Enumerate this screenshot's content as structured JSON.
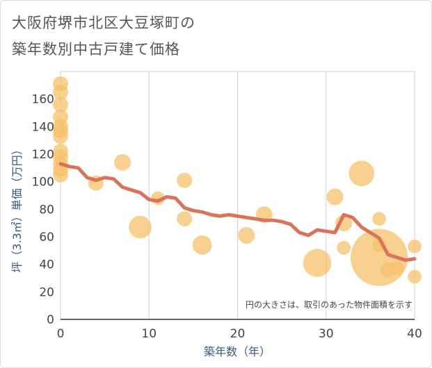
{
  "chart_data": {
    "type": "scatter",
    "title_lines": [
      "大阪府堺市北区大豆塚町の",
      "築年数別中古戸建て価格"
    ],
    "xlabel": "築年数（年）",
    "ylabel": "坪（3.3㎡）単価（万円）",
    "xlim": [
      0,
      40
    ],
    "ylim": [
      0,
      180
    ],
    "xticks": [
      0,
      10,
      20,
      30,
      40
    ],
    "yticks": [
      0,
      20,
      40,
      60,
      80,
      100,
      120,
      140,
      160
    ],
    "note": "円の大きさは、取引のあった物件面積を示す",
    "colors": {
      "bubble": "#f5c26b",
      "trend": "#d9735a",
      "grid": "#c9d3e0"
    },
    "bubbles": [
      {
        "x": 0,
        "y": 171,
        "size": 1
      },
      {
        "x": 0,
        "y": 165,
        "size": 1
      },
      {
        "x": 0,
        "y": 156,
        "size": 1
      },
      {
        "x": 0,
        "y": 147,
        "size": 1
      },
      {
        "x": 0,
        "y": 140,
        "size": 1
      },
      {
        "x": 0,
        "y": 137,
        "size": 1
      },
      {
        "x": 0,
        "y": 133,
        "size": 1
      },
      {
        "x": 0,
        "y": 122,
        "size": 1
      },
      {
        "x": 0,
        "y": 118,
        "size": 1
      },
      {
        "x": 0,
        "y": 113,
        "size": 1
      },
      {
        "x": 0,
        "y": 109,
        "size": 1
      },
      {
        "x": 0,
        "y": 105,
        "size": 1
      },
      {
        "x": 4,
        "y": 99,
        "size": 1
      },
      {
        "x": 7,
        "y": 114,
        "size": 1.2
      },
      {
        "x": 9,
        "y": 67,
        "size": 2.2
      },
      {
        "x": 11,
        "y": 88,
        "size": 0.8
      },
      {
        "x": 14,
        "y": 101,
        "size": 1
      },
      {
        "x": 14,
        "y": 73,
        "size": 1
      },
      {
        "x": 16,
        "y": 54,
        "size": 1.6
      },
      {
        "x": 21,
        "y": 61,
        "size": 1.2
      },
      {
        "x": 23,
        "y": 76,
        "size": 1.2
      },
      {
        "x": 29,
        "y": 41,
        "size": 3.4
      },
      {
        "x": 31,
        "y": 89,
        "size": 1.2
      },
      {
        "x": 32,
        "y": 70,
        "size": 1.2
      },
      {
        "x": 32,
        "y": 52,
        "size": 0.8
      },
      {
        "x": 34,
        "y": 106,
        "size": 2.8
      },
      {
        "x": 36,
        "y": 73,
        "size": 0.8
      },
      {
        "x": 36,
        "y": 54,
        "size": 0.8
      },
      {
        "x": 36,
        "y": 45,
        "size": 14
      },
      {
        "x": 37,
        "y": 36,
        "size": 1
      },
      {
        "x": 38,
        "y": 37,
        "size": 0.8
      },
      {
        "x": 40,
        "y": 53,
        "size": 0.8
      },
      {
        "x": 40,
        "y": 31,
        "size": 0.8
      }
    ],
    "trend": {
      "x": [
        0,
        1,
        2,
        3,
        4,
        5,
        6,
        7,
        8,
        9,
        10,
        11,
        12,
        13,
        14,
        15,
        16,
        17,
        18,
        19,
        20,
        21,
        22,
        23,
        24,
        25,
        26,
        27,
        28,
        29,
        30,
        31,
        32,
        33,
        34,
        35,
        36,
        37,
        38,
        39,
        40
      ],
      "y": [
        113,
        111,
        110,
        103,
        101,
        103,
        102,
        96,
        94,
        92,
        87,
        86,
        89,
        88,
        81,
        79,
        78,
        76,
        75,
        76,
        75,
        74,
        73,
        72,
        72,
        71,
        69,
        63,
        61,
        65,
        64,
        63,
        76,
        74,
        67,
        63,
        59,
        47,
        45,
        43,
        44
      ]
    }
  }
}
